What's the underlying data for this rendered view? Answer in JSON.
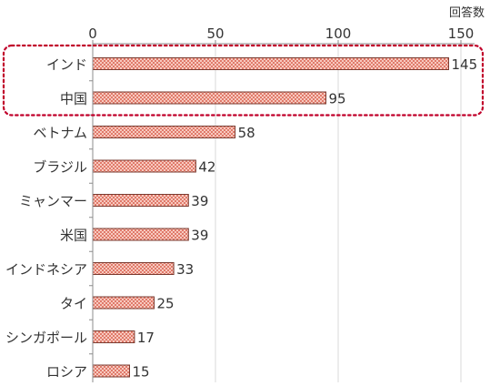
{
  "chart_data": {
    "type": "bar",
    "orientation": "horizontal",
    "unit_label": "回答数",
    "categories": [
      "インド",
      "中国",
      "ベトナム",
      "ブラジル",
      "ミャンマー",
      "米国",
      "インドネシア",
      "タイ",
      "シンガポール",
      "ロシア"
    ],
    "values": [
      145,
      95,
      58,
      42,
      39,
      39,
      33,
      25,
      17,
      15
    ],
    "xlim": [
      0,
      160
    ],
    "ticks": [
      0,
      50,
      100,
      150
    ],
    "grid": true,
    "highlight": {
      "categories": [
        "インド",
        "中国"
      ],
      "style": "dotted-rounded-box"
    },
    "colors": {
      "bar_fill": "#f7c9bf",
      "bar_pattern": "#e07a6a",
      "bar_stroke": "#7a3b30",
      "highlight": "#c0002a",
      "grid": "#d9d9d9",
      "axis": "#8c8c8c"
    }
  }
}
